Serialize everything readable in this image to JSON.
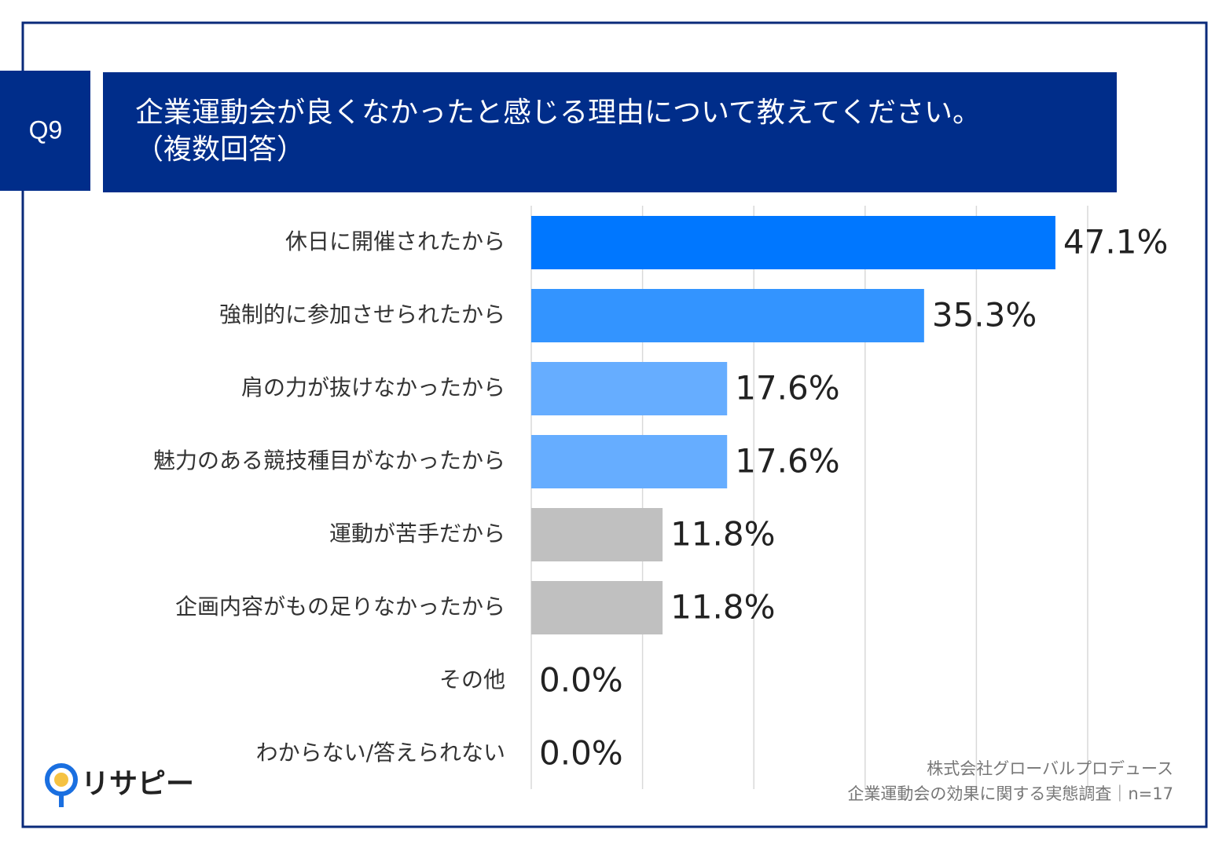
{
  "chart_data": {
    "type": "barh",
    "question_label": "Q9",
    "title": "企業運動会が良くなかったと感じる理由について教えてください。",
    "title_note": "（複数回答）",
    "categories": [
      "休日に開催されたから",
      "強制的に参加させられたから",
      "肩の力が抜けなかったから",
      "魅力のある競技種目がなかったから",
      "運動が苦手だから",
      "企画内容がもの足りなかったから",
      "その他",
      "わからない/答えられない"
    ],
    "values": [
      47.1,
      35.3,
      17.6,
      17.6,
      11.8,
      11.8,
      0.0,
      0.0
    ],
    "value_labels": [
      "47.1%",
      "35.3%",
      "17.6%",
      "17.6%",
      "11.8%",
      "11.8%",
      "0.0%",
      "0.0%"
    ],
    "colors": [
      "#0077ff",
      "#3394ff",
      "#66adff",
      "#66adff",
      "#c0c0c0",
      "#c0c0c0",
      "#c0c0c0",
      "#c0c0c0"
    ],
    "xlim": [
      0,
      50
    ],
    "xticks": [
      0,
      10,
      20,
      30,
      40,
      50
    ],
    "grid": true,
    "source": "株式会社グローバルプロデュース",
    "note": "企業運動会の効果に関する実態調査｜n=17",
    "logo": "リサピー"
  }
}
